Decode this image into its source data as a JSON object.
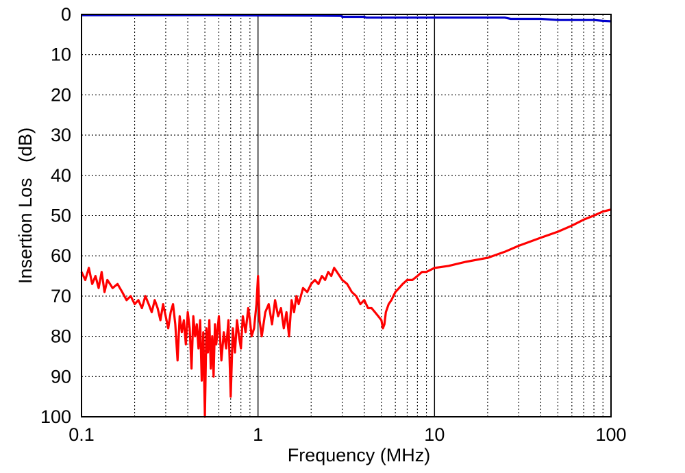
{
  "chart_data": {
    "type": "line",
    "title": "",
    "xlabel": "Frequency (MHz)",
    "ylabel": "Insertion Los   (dB)",
    "x_scale": "log",
    "xlim": [
      0.1,
      100
    ],
    "ylim": [
      0,
      100
    ],
    "y_inverted": true,
    "grid": true,
    "x_tick_labels": [
      "0.1",
      "1",
      "10",
      "100"
    ],
    "x_tick_values": [
      0.1,
      1,
      10,
      100
    ],
    "y_tick_labels": [
      "0",
      "10",
      "20",
      "30",
      "40",
      "50",
      "60",
      "70",
      "80",
      "90",
      "100"
    ],
    "y_tick_values": [
      0,
      10,
      20,
      30,
      40,
      50,
      60,
      70,
      80,
      90,
      100
    ],
    "colors": {
      "red_series": "#ff0000",
      "blue_series": "#0000cc"
    },
    "series": [
      {
        "color": "#0000cc",
        "x": [
          0.1,
          0.5,
          1,
          2,
          2.95,
          3.0,
          4.0,
          4.1,
          8,
          15,
          25,
          27,
          40,
          50,
          60,
          80,
          90,
          100
        ],
        "y": [
          0.2,
          0.2,
          0.25,
          0.3,
          0.35,
          0.6,
          0.6,
          0.8,
          0.8,
          0.8,
          0.8,
          1.1,
          1.1,
          1.4,
          1.4,
          1.4,
          1.6,
          1.7
        ]
      },
      {
        "color": "#ff0000",
        "x": [
          0.1,
          0.105,
          0.11,
          0.115,
          0.12,
          0.125,
          0.13,
          0.135,
          0.14,
          0.145,
          0.15,
          0.16,
          0.17,
          0.18,
          0.19,
          0.2,
          0.21,
          0.22,
          0.23,
          0.24,
          0.25,
          0.26,
          0.27,
          0.28,
          0.29,
          0.3,
          0.31,
          0.32,
          0.33,
          0.34,
          0.35,
          0.36,
          0.37,
          0.38,
          0.39,
          0.4,
          0.41,
          0.42,
          0.43,
          0.44,
          0.45,
          0.46,
          0.47,
          0.48,
          0.49,
          0.5,
          0.51,
          0.52,
          0.53,
          0.54,
          0.55,
          0.56,
          0.57,
          0.58,
          0.6,
          0.62,
          0.64,
          0.66,
          0.68,
          0.7,
          0.72,
          0.74,
          0.76,
          0.78,
          0.8,
          0.82,
          0.85,
          0.88,
          0.9,
          0.92,
          0.95,
          0.98,
          1.0,
          1.02,
          1.05,
          1.1,
          1.15,
          1.2,
          1.25,
          1.3,
          1.35,
          1.4,
          1.45,
          1.5,
          1.55,
          1.6,
          1.65,
          1.7,
          1.8,
          1.9,
          2.0,
          2.1,
          2.2,
          2.3,
          2.4,
          2.5,
          2.6,
          2.7,
          2.8,
          2.9,
          3.0,
          3.2,
          3.4,
          3.6,
          3.8,
          4.0,
          4.2,
          4.4,
          4.6,
          4.8,
          5.0,
          5.1,
          5.2,
          5.3,
          5.5,
          5.7,
          6.0,
          6.3,
          6.6,
          7.0,
          7.5,
          8.0,
          8.5,
          9.0,
          10,
          12,
          15,
          20,
          25,
          30,
          40,
          50,
          60,
          70,
          80,
          90,
          100
        ],
        "y": [
          64,
          66,
          63,
          67,
          65,
          68,
          64,
          69,
          66,
          67,
          68,
          67,
          69,
          71,
          70,
          72,
          71,
          73,
          70,
          72,
          74,
          71,
          73,
          76,
          72,
          75,
          78,
          74,
          72,
          77,
          86,
          75,
          79,
          76,
          82,
          74,
          78,
          88,
          75,
          80,
          77,
          83,
          76,
          91,
          79,
          100,
          78,
          84,
          76,
          88,
          80,
          90,
          77,
          82,
          75,
          86,
          79,
          83,
          76,
          95,
          78,
          84,
          76,
          80,
          83,
          75,
          79,
          73,
          76,
          80,
          78,
          72,
          65,
          76,
          80,
          74,
          72,
          77,
          71,
          75,
          73,
          78,
          74,
          80,
          71,
          74,
          70,
          72,
          68,
          69,
          67,
          66,
          67,
          65,
          66,
          64,
          65,
          63,
          64,
          65,
          66,
          67,
          69,
          70,
          72,
          71,
          73,
          73,
          74,
          75,
          76,
          78,
          77,
          74,
          72,
          71,
          69,
          68,
          67,
          66,
          66,
          65,
          64,
          64,
          63,
          62.5,
          61.5,
          60.5,
          59,
          57.5,
          55.5,
          54,
          52.5,
          51,
          50,
          49,
          48.5
        ]
      }
    ]
  }
}
